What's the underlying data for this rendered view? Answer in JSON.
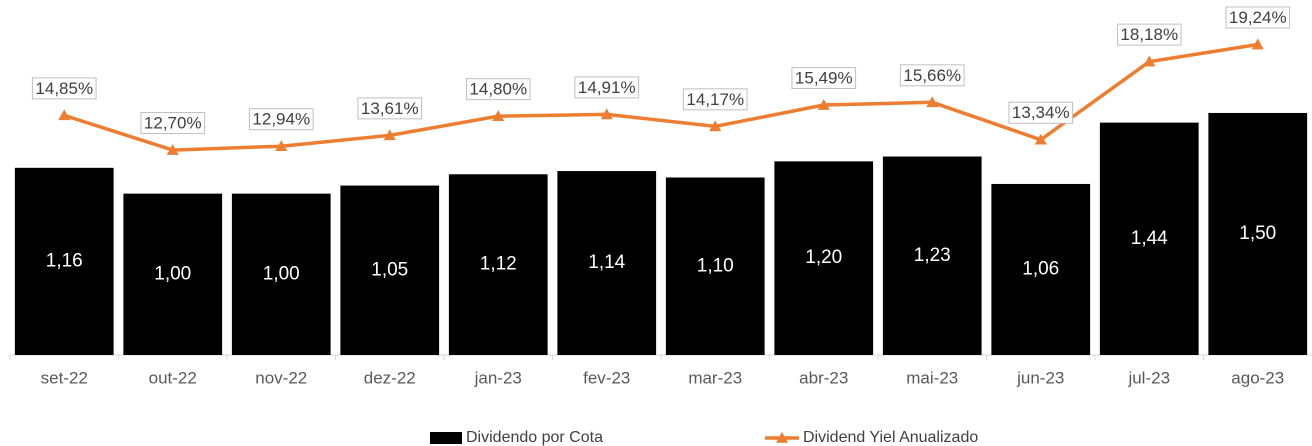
{
  "chart_data": {
    "type": "bar",
    "categories": [
      "set-22",
      "out-22",
      "nov-22",
      "dez-22",
      "jan-23",
      "fev-23",
      "mar-23",
      "abr-23",
      "mai-23",
      "jun-23",
      "jul-23",
      "ago-23"
    ],
    "series": [
      {
        "name": "Dividendo por Cota",
        "type": "bar",
        "color": "#000000",
        "values": [
          1.16,
          1.0,
          1.0,
          1.05,
          1.12,
          1.14,
          1.1,
          1.2,
          1.23,
          1.06,
          1.44,
          1.5
        ],
        "value_labels": [
          "1,16",
          "1,00",
          "1,00",
          "1,05",
          "1,12",
          "1,14",
          "1,10",
          "1,20",
          "1,23",
          "1,06",
          "1,44",
          "1,50"
        ]
      },
      {
        "name": "Dividend Yiel Anualizado",
        "type": "line",
        "color": "#ed7d31",
        "axis": "y2",
        "values": [
          14.85,
          12.7,
          12.94,
          13.61,
          14.8,
          14.91,
          14.17,
          15.49,
          15.66,
          13.34,
          18.18,
          19.24
        ],
        "value_labels": [
          "14,85%",
          "12,70%",
          "12,94%",
          "13,61%",
          "14,80%",
          "14,91%",
          "14,17%",
          "15,49%",
          "15,66%",
          "13,34%",
          "18,18%",
          "19,24%"
        ]
      }
    ],
    "ylim": [
      0,
      2.2
    ],
    "y2lim": [
      0,
      22
    ],
    "legend": "bottom"
  }
}
